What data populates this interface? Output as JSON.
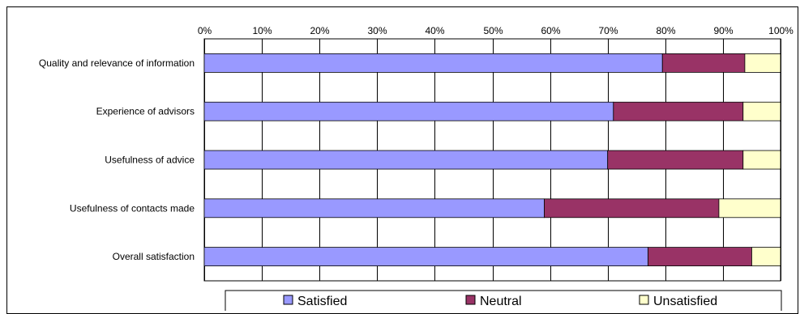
{
  "chart_data": {
    "type": "bar",
    "orientation": "horizontal",
    "stacked": true,
    "categories": [
      "Quality and relevance of information",
      "Experience of advisors",
      "Usefulness of advice",
      "Usefulness of contacts made",
      "Overall satisfaction"
    ],
    "series": [
      {
        "name": "Satisfied",
        "color": "#9999ff",
        "values": [
          79.5,
          71,
          70,
          59,
          77
        ]
      },
      {
        "name": "Neutral",
        "color": "#993366",
        "values": [
          14.3,
          22.5,
          23.5,
          30.3,
          18
        ]
      },
      {
        "name": "Unsatisfied",
        "color": "#ffffcc",
        "values": [
          6.2,
          6.5,
          6.5,
          10.7,
          5
        ]
      }
    ],
    "x_ticks": [
      "0%",
      "10%",
      "20%",
      "30%",
      "40%",
      "50%",
      "60%",
      "70%",
      "80%",
      "90%",
      "100%"
    ],
    "xlim": [
      0,
      100
    ],
    "grid": true,
    "legend_position": "bottom"
  }
}
